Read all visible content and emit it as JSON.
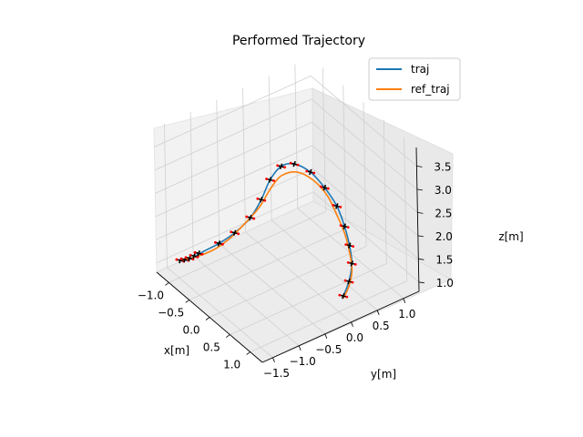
{
  "chart_data": {
    "type": "line",
    "projection": "3d",
    "title": "Performed Trajectory",
    "xlabel": "x[m]",
    "ylabel": "y[m]",
    "zlabel": "z[m]",
    "xlim": [
      -1.3,
      1.3
    ],
    "ylim": [
      -1.7,
      1.3
    ],
    "zlim": [
      0.8,
      3.9
    ],
    "x_ticks": [
      "−1.0",
      "−0.5",
      "0.0",
      "0.5",
      "1.0"
    ],
    "y_ticks": [
      "−1.5",
      "−1.0",
      "−0.5",
      "0.0",
      "0.5",
      "1.0"
    ],
    "z_ticks": [
      "1.0",
      "1.5",
      "2.0",
      "2.5",
      "3.0",
      "3.5"
    ],
    "x_tick_values": [
      -1.0,
      -0.5,
      0.0,
      0.5,
      1.0
    ],
    "y_tick_values": [
      -1.5,
      -1.0,
      -0.5,
      0.0,
      0.5,
      1.0
    ],
    "z_tick_values": [
      1.0,
      1.5,
      2.0,
      2.5,
      3.0,
      3.5
    ],
    "grid": true,
    "legend_position": "top-right",
    "series": [
      {
        "name": "traj",
        "color": "#1f77b4",
        "points": [
          [
            -1.1,
            -1.4,
            1.05
          ],
          [
            -1.0,
            -1.3,
            1.1
          ],
          [
            -0.85,
            -1.15,
            1.3
          ],
          [
            -0.65,
            -1.0,
            1.55
          ],
          [
            -0.45,
            -0.85,
            1.85
          ],
          [
            -0.25,
            -0.7,
            2.25
          ],
          [
            -0.1,
            -0.6,
            2.7
          ],
          [
            0.0,
            -0.5,
            3.15
          ],
          [
            0.15,
            -0.4,
            3.5
          ],
          [
            0.35,
            -0.3,
            3.65
          ],
          [
            0.55,
            -0.15,
            3.55
          ],
          [
            0.7,
            0.0,
            3.25
          ],
          [
            0.8,
            0.15,
            2.85
          ],
          [
            0.85,
            0.25,
            2.4
          ],
          [
            0.9,
            0.3,
            2.0
          ],
          [
            0.95,
            0.3,
            1.65
          ],
          [
            1.0,
            0.2,
            1.35
          ],
          [
            1.05,
            0.05,
            1.15
          ]
        ]
      },
      {
        "name": "ref_traj",
        "color": "#ff7f0e",
        "points": [
          [
            -1.1,
            -1.4,
            1.05
          ],
          [
            -0.95,
            -1.25,
            1.15
          ],
          [
            -0.75,
            -1.05,
            1.35
          ],
          [
            -0.55,
            -0.9,
            1.65
          ],
          [
            -0.35,
            -0.75,
            2.05
          ],
          [
            -0.15,
            -0.6,
            2.5
          ],
          [
            0.0,
            -0.5,
            2.95
          ],
          [
            0.15,
            -0.4,
            3.3
          ],
          [
            0.35,
            -0.25,
            3.45
          ],
          [
            0.55,
            -0.1,
            3.35
          ],
          [
            0.7,
            0.05,
            3.05
          ],
          [
            0.8,
            0.15,
            2.65
          ],
          [
            0.85,
            0.25,
            2.25
          ],
          [
            0.9,
            0.3,
            1.85
          ],
          [
            0.95,
            0.3,
            1.5
          ],
          [
            1.0,
            0.2,
            1.25
          ],
          [
            1.05,
            0.05,
            1.1
          ]
        ]
      }
    ],
    "markers": {
      "description_colors": [
        "#000000",
        "#ff0000"
      ],
      "positions": [
        [
          -1.1,
          -1.4,
          1.05
        ],
        [
          -1.05,
          -1.35,
          1.08
        ],
        [
          -1.0,
          -1.3,
          1.12
        ],
        [
          -0.95,
          -1.25,
          1.18
        ],
        [
          -0.9,
          -1.2,
          1.25
        ],
        [
          -0.65,
          -1.0,
          1.55
        ],
        [
          -0.45,
          -0.85,
          1.85
        ],
        [
          -0.25,
          -0.7,
          2.25
        ],
        [
          -0.1,
          -0.6,
          2.7
        ],
        [
          0.0,
          -0.5,
          3.15
        ],
        [
          0.15,
          -0.4,
          3.5
        ],
        [
          0.35,
          -0.3,
          3.65
        ],
        [
          0.55,
          -0.15,
          3.55
        ],
        [
          0.7,
          0.0,
          3.25
        ],
        [
          0.8,
          0.15,
          2.85
        ],
        [
          0.85,
          0.25,
          2.4
        ],
        [
          0.9,
          0.3,
          2.0
        ],
        [
          0.95,
          0.3,
          1.65
        ],
        [
          1.0,
          0.2,
          1.35
        ],
        [
          1.05,
          0.05,
          1.15
        ]
      ]
    }
  }
}
